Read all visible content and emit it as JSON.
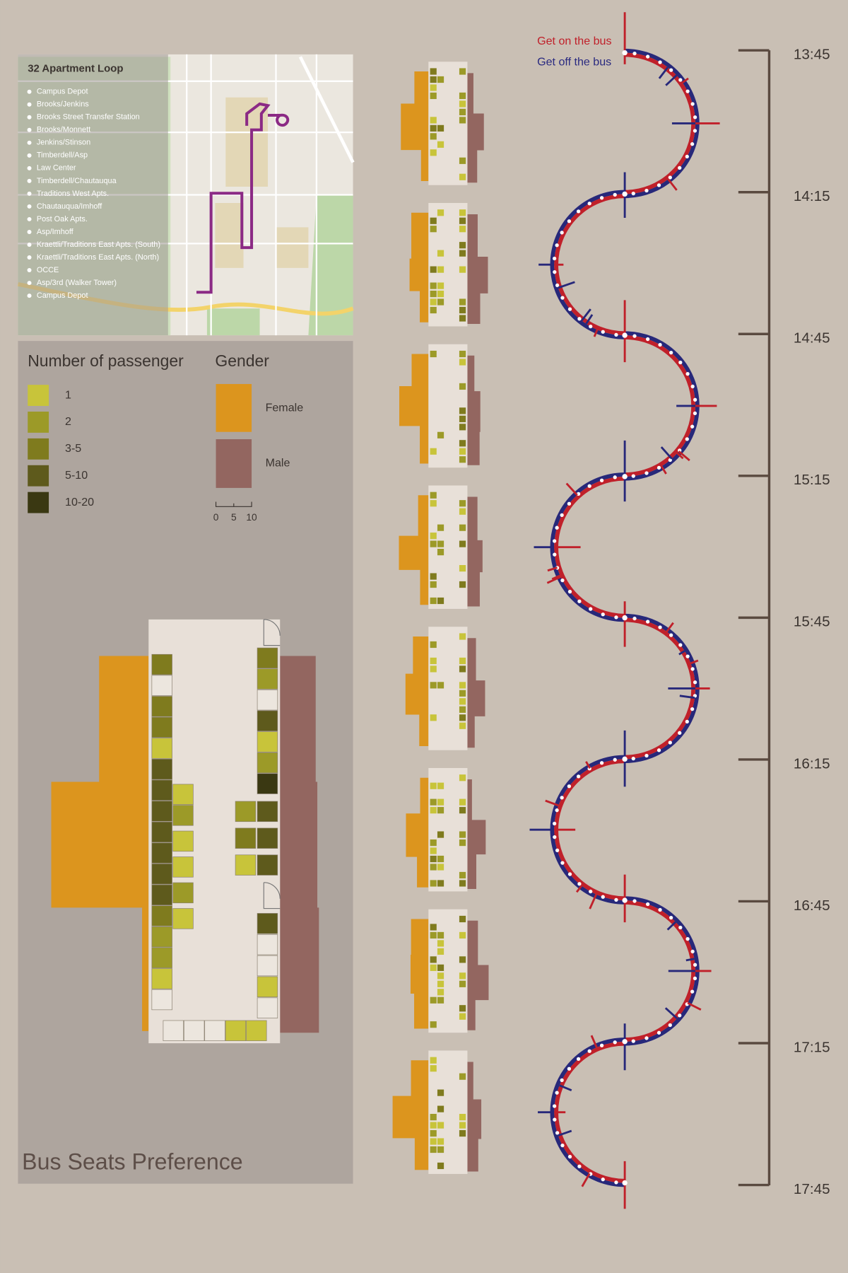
{
  "map": {
    "title": "32 Apartment Loop",
    "stops": [
      "Campus Depot",
      "Brooks/Jenkins",
      "Brooks Street Transfer Station",
      "Brooks/Monnett",
      "Jenkins/Stinson",
      "Timberdell/Asp",
      "Law Center",
      "Timberdell/Chautauqua",
      "Traditions West Apts.",
      "Chautauqua/Imhoff",
      "Post Oak Apts.",
      "Asp/Imhoff",
      "Kraettli/Traditions East Apts. (South)",
      "Kraettli/Traditions East Apts. (North)",
      "OCCE",
      "Asp/3rd (Walker Tower)",
      "Campus Depot"
    ]
  },
  "legend": {
    "passenger_title": "Number of passenger",
    "passenger_levels": [
      "1",
      "2",
      "3-5",
      "5-10",
      "10-20"
    ],
    "gender_title": "Gender",
    "female": "Female",
    "male": "Male",
    "scale": [
      "0",
      "5",
      "10"
    ]
  },
  "title": "Bus Seats Preference",
  "key": {
    "on": "Get on the bus",
    "off": "Get off the bus"
  },
  "times": [
    "13:45",
    "14:15",
    "14:45",
    "15:15",
    "15:45",
    "16:15",
    "16:45",
    "17:15",
    "17:45"
  ]
}
